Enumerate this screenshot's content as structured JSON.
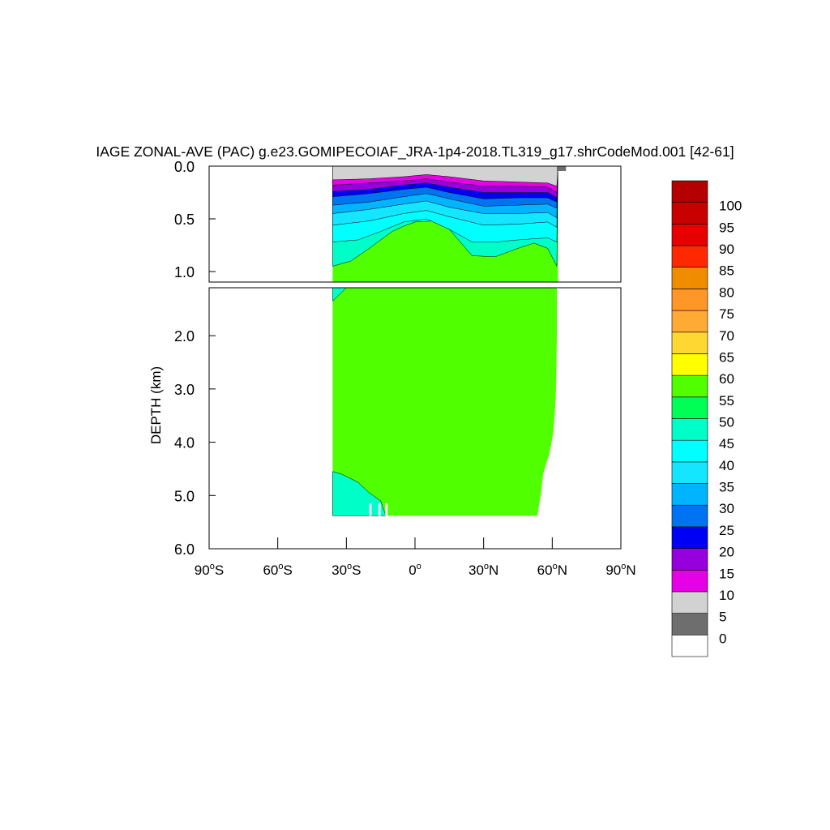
{
  "chart_data": {
    "type": "contour",
    "title": "IAGE ZONAL-AVE (PAC) g.e23.GOMIPECOIAF_JRA-1p4-2018.TL319_g17.shrCodeMod.001 [42-61]",
    "xlabel": "",
    "ylabel": "DEPTH (km)",
    "x_range": [
      -90,
      90
    ],
    "y_range_upper_km": [
      0.0,
      1.1
    ],
    "y_range_lower_km": [
      1.1,
      6.0
    ],
    "x_ticks": [
      {
        "value": -90,
        "label": "90",
        "suffix": "S"
      },
      {
        "value": -60,
        "label": "60",
        "suffix": "S"
      },
      {
        "value": -30,
        "label": "30",
        "suffix": "S"
      },
      {
        "value": 0,
        "label": "0",
        "suffix": ""
      },
      {
        "value": 30,
        "label": "30",
        "suffix": "N"
      },
      {
        "value": 60,
        "label": "60",
        "suffix": "N"
      },
      {
        "value": 90,
        "label": "90",
        "suffix": "N"
      }
    ],
    "y_ticks_upper": [
      {
        "value": 0.0,
        "label": "0.0"
      },
      {
        "value": 0.5,
        "label": "0.5"
      },
      {
        "value": 1.0,
        "label": "1.0"
      }
    ],
    "y_ticks_lower": [
      {
        "value": 2.0,
        "label": "2.0"
      },
      {
        "value": 3.0,
        "label": "3.0"
      },
      {
        "value": 4.0,
        "label": "4.0"
      },
      {
        "value": 5.0,
        "label": "5.0"
      },
      {
        "value": 6.0,
        "label": "6.0"
      }
    ],
    "colorbar": {
      "levels": [
        "0",
        "5",
        "10",
        "15",
        "20",
        "25",
        "30",
        "35",
        "40",
        "45",
        "50",
        "55",
        "60",
        "65",
        "70",
        "75",
        "80",
        "85",
        "90",
        "95",
        "100"
      ],
      "colors": [
        "#ffffff",
        "#6e6e6e",
        "#d2d2d2",
        "#e600e6",
        "#9600dc",
        "#0000f5",
        "#0073f0",
        "#00b4ff",
        "#14e6ff",
        "#00ffff",
        "#00ffc8",
        "#00ff55",
        "#50ff00",
        "#ffff00",
        "#ffd732",
        "#ffaa32",
        "#ff9628",
        "#f08c00",
        "#ff2800",
        "#e60000",
        "#c80000",
        "#b40000"
      ]
    },
    "bands_upper": [
      {
        "level": 5,
        "top": [
          [
            -36,
            0.0
          ],
          [
            -15,
            0.0
          ],
          [
            0,
            0.0
          ],
          [
            20,
            0.0
          ],
          [
            40,
            0.0
          ],
          [
            58,
            0.0
          ],
          [
            63,
            0.0
          ],
          [
            66,
            0.0
          ]
        ],
        "bottom": [
          [
            -36,
            0.13
          ],
          [
            -20,
            0.12
          ],
          [
            -5,
            0.1
          ],
          [
            5,
            0.08
          ],
          [
            15,
            0.1
          ],
          [
            30,
            0.14
          ],
          [
            45,
            0.15
          ],
          [
            58,
            0.16
          ],
          [
            62,
            0.19
          ]
        ]
      },
      {
        "level": 10,
        "bottom": [
          [
            -36,
            0.18
          ],
          [
            -20,
            0.16
          ],
          [
            -5,
            0.14
          ],
          [
            5,
            0.12
          ],
          [
            15,
            0.15
          ],
          [
            30,
            0.19
          ],
          [
            45,
            0.19
          ],
          [
            58,
            0.2
          ],
          [
            62,
            0.25
          ]
        ]
      },
      {
        "level": 15,
        "bottom": [
          [
            -36,
            0.24
          ],
          [
            -20,
            0.22
          ],
          [
            -5,
            0.18
          ],
          [
            5,
            0.16
          ],
          [
            15,
            0.2
          ],
          [
            30,
            0.25
          ],
          [
            45,
            0.25
          ],
          [
            58,
            0.25
          ],
          [
            62,
            0.3
          ]
        ]
      },
      {
        "level": 20,
        "bottom": [
          [
            -36,
            0.29
          ],
          [
            -20,
            0.26
          ],
          [
            -5,
            0.22
          ],
          [
            5,
            0.2
          ],
          [
            15,
            0.25
          ],
          [
            30,
            0.31
          ],
          [
            45,
            0.3
          ],
          [
            58,
            0.3
          ],
          [
            62,
            0.34
          ]
        ]
      },
      {
        "level": 25,
        "bottom": [
          [
            -36,
            0.37
          ],
          [
            -20,
            0.34
          ],
          [
            -5,
            0.29
          ],
          [
            5,
            0.26
          ],
          [
            15,
            0.31
          ],
          [
            30,
            0.38
          ],
          [
            45,
            0.37
          ],
          [
            58,
            0.36
          ],
          [
            62,
            0.4
          ]
        ]
      },
      {
        "level": 30,
        "bottom": [
          [
            -36,
            0.45
          ],
          [
            -20,
            0.41
          ],
          [
            -5,
            0.36
          ],
          [
            5,
            0.33
          ],
          [
            15,
            0.39
          ],
          [
            30,
            0.45
          ],
          [
            45,
            0.45
          ],
          [
            58,
            0.44
          ],
          [
            62,
            0.49
          ]
        ]
      },
      {
        "level": 35,
        "bottom": [
          [
            -36,
            0.56
          ],
          [
            -20,
            0.52
          ],
          [
            -5,
            0.45
          ],
          [
            5,
            0.42
          ],
          [
            15,
            0.48
          ],
          [
            30,
            0.56
          ],
          [
            45,
            0.55
          ],
          [
            58,
            0.53
          ],
          [
            62,
            0.58
          ]
        ]
      },
      {
        "level": 40,
        "bottom": [
          [
            -36,
            0.72
          ],
          [
            -25,
            0.7
          ],
          [
            -15,
            0.62
          ],
          [
            -5,
            0.53
          ],
          [
            5,
            0.5
          ],
          [
            15,
            0.6
          ],
          [
            25,
            0.72
          ],
          [
            35,
            0.72
          ],
          [
            45,
            0.7
          ],
          [
            58,
            0.68
          ],
          [
            62,
            0.72
          ]
        ]
      },
      {
        "level": 45,
        "bottom": [
          [
            -36,
            0.95
          ],
          [
            -28,
            0.9
          ],
          [
            -20,
            0.78
          ],
          [
            -10,
            0.62
          ],
          [
            -5,
            0.57
          ],
          [
            0,
            0.53
          ],
          [
            8,
            0.52
          ],
          [
            15,
            0.6
          ],
          [
            25,
            0.85
          ],
          [
            35,
            0.86
          ],
          [
            45,
            0.78
          ],
          [
            52,
            0.73
          ],
          [
            58,
            0.78
          ],
          [
            62,
            0.95
          ]
        ]
      }
    ],
    "bands_lower": [
      {
        "level": 45,
        "region": "south-upper-edge",
        "points": [
          [
            -36,
            1.1
          ],
          [
            -30,
            1.1
          ],
          [
            -36,
            1.35
          ]
        ]
      },
      {
        "level": 45,
        "region": "south-bottom",
        "points": [
          [
            -36,
            4.55
          ],
          [
            -32,
            4.6
          ],
          [
            -25,
            4.75
          ],
          [
            -20,
            4.95
          ],
          [
            -15,
            5.1
          ],
          [
            -13,
            5.35
          ]
        ]
      },
      {
        "level": 50,
        "region": "main",
        "note": ""
      }
    ]
  }
}
